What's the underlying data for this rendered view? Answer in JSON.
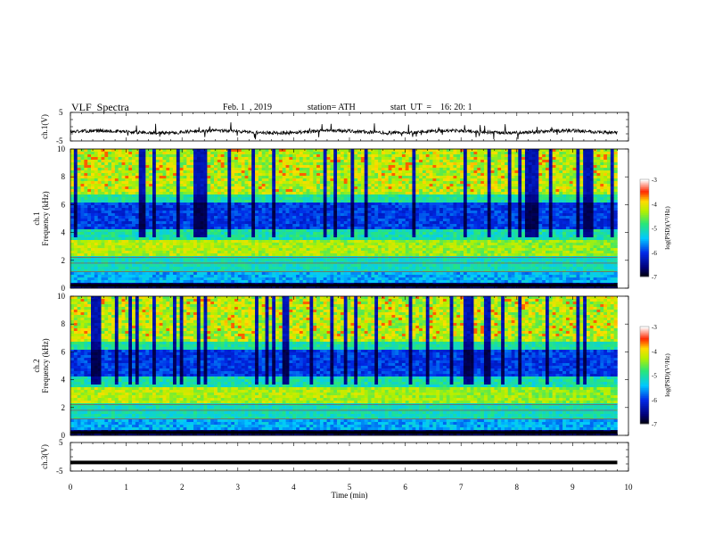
{
  "header": {
    "title": "VLF  Spectra",
    "date": "Feb. 1  , 2019",
    "station": "station= ATH",
    "start": "start  UT  =    16: 20: 1"
  },
  "chart_data": [
    {
      "type": "line",
      "title": "VLF  Spectra",
      "ylabel": "ch.1(V)",
      "ylim": [
        -5,
        5
      ],
      "yticks": [
        "5",
        "-5"
      ],
      "xlim": [
        0,
        10
      ],
      "series": [
        {
          "values_description_level": -1.8,
          "x_end": 9.8
        }
      ]
    },
    {
      "type": "heatmap",
      "ylabel_top": "ch.1",
      "ylabel": "Frequency  (kHz)",
      "ylim": [
        0,
        10
      ],
      "yticks": [
        "10",
        "8",
        "6",
        "4",
        "2",
        "0"
      ],
      "xlim": [
        0,
        10
      ],
      "colorbar": {
        "label": "log(PSD)(V²/Hz)",
        "ticks": [
          "-3",
          "-4",
          "-5",
          "-6",
          "-7"
        ],
        "range": [
          -7,
          -3
        ]
      }
    },
    {
      "type": "heatmap",
      "ylabel_top": "ch.2",
      "ylabel": "Frequency  (kHz)",
      "ylim": [
        0,
        10
      ],
      "yticks": [
        "10",
        "8",
        "6",
        "4",
        "2",
        "0"
      ],
      "xlim": [
        0,
        10
      ],
      "colorbar": {
        "label": "log(PSD)(V²/Hz)",
        "ticks": [
          "-3",
          "-4",
          "-5",
          "-6",
          "-7"
        ],
        "range": [
          -7,
          -3
        ]
      }
    },
    {
      "type": "line",
      "ylabel": "ch.3(V)",
      "ylim": [
        -5,
        5
      ],
      "yticks": [
        "5",
        "-5"
      ],
      "xlim": [
        0,
        10
      ],
      "series": [
        {
          "constant_level": -2.0,
          "x_end": 9.8
        }
      ]
    }
  ],
  "xaxis": {
    "label": "Time  (min)",
    "ticks": [
      "0",
      "1",
      "2",
      "3",
      "4",
      "5",
      "6",
      "7",
      "8",
      "9",
      "10"
    ]
  }
}
